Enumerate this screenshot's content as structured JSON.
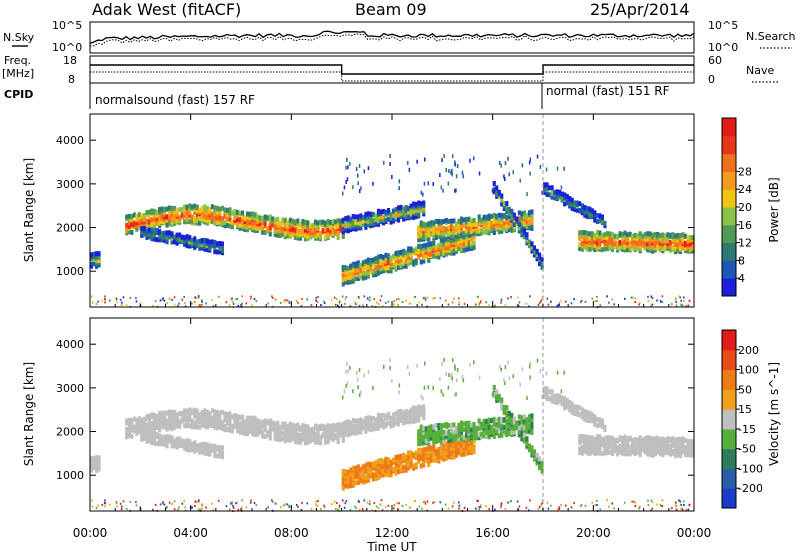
{
  "header": {
    "station": "Adak West (fitACF)",
    "beam": "Beam 09",
    "date": "25/Apr/2014"
  },
  "summary_panels": {
    "nsky_label": "N.Sky",
    "nsky_ticks": [
      "10^5",
      "10^0"
    ],
    "nsearch_label": "N.Search",
    "nsearch_ticks": [
      "10^5",
      "10^0"
    ],
    "freq_label_line1": "Freq.",
    "freq_label_line2": "[MHz]",
    "freq_ticks": [
      "18",
      "8"
    ],
    "nave_label": "Nave",
    "nave_ticks": [
      "60",
      "0"
    ],
    "cpid_label": "CPID",
    "cpid_segments": [
      {
        "label": "normalsound (fast) 157 RF",
        "start_hour": 0,
        "end_hour": 18
      },
      {
        "label": "normal (fast) 151 RF",
        "start_hour": 18,
        "end_hour": 24
      }
    ]
  },
  "chart_data": [
    {
      "type": "heatmap",
      "title": "",
      "ylabel": "Slant Range [km]",
      "ylim": [
        180,
        4600
      ],
      "yticks": [
        1000,
        2000,
        3000,
        4000
      ],
      "xlim": [
        0,
        24
      ],
      "colorbar": {
        "label": "Power [dB]",
        "ticks": [
          "4",
          "8",
          "12",
          "16",
          "20",
          "24",
          "28"
        ],
        "colors": [
          "#1b1fd9",
          "#1c58b8",
          "#2d7a74",
          "#4f9a56",
          "#8bc34a",
          "#f1c40f",
          "#f59a1c",
          "#f06f1c",
          "#e8361a",
          "#e31b1b"
        ]
      }
    },
    {
      "type": "heatmap",
      "title": "",
      "ylabel": "Slant Range [km]",
      "ylim": [
        180,
        4600
      ],
      "yticks": [
        1000,
        2000,
        3000,
        4000
      ],
      "xlim": [
        0,
        24
      ],
      "xticks": [
        "00:00",
        "04:00",
        "08:00",
        "12:00",
        "16:00",
        "20:00",
        "00:00"
      ],
      "xlabel": "Time UT",
      "colorbar": {
        "label": "Velocity [m s^-1]",
        "ticks": [
          "200",
          "100",
          "50",
          "15",
          "-15",
          "-50",
          "-100",
          "-200"
        ],
        "colors": [
          "#1a3cc9",
          "#2a5fa8",
          "#2e7d5a",
          "#56b03a",
          "#bfbfbf",
          "#f0a01c",
          "#f07a18",
          "#ea4a16",
          "#e51a1a"
        ]
      }
    }
  ],
  "palette": {
    "ground": "#bfbfbf",
    "noise_dots": [
      "#f0a01c",
      "#56b03a",
      "#1a3cc9",
      "#e51a1a"
    ]
  }
}
